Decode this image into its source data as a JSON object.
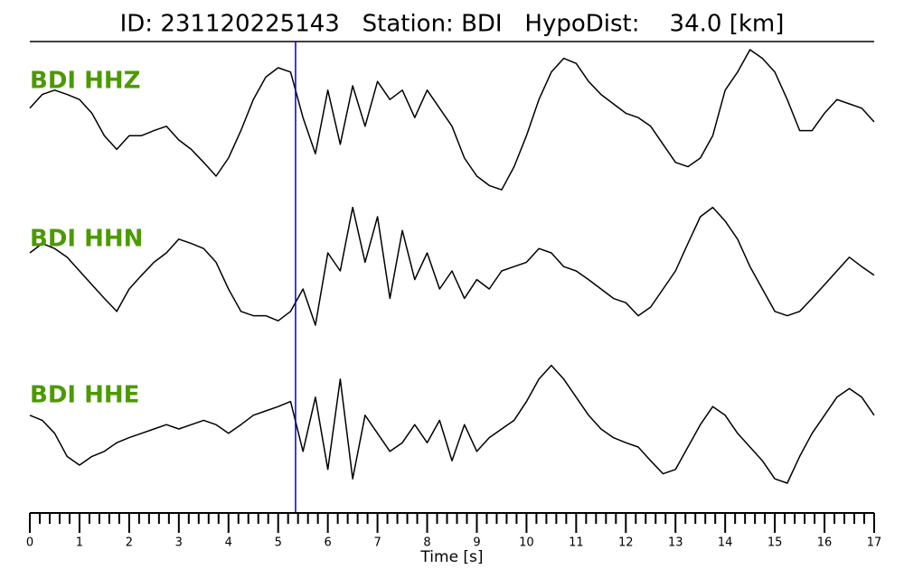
{
  "chart_data": {
    "type": "line",
    "title": "ID: 231120225143   Station: BDI   HypoDist:    34.0 [km]",
    "xlabel": "Time [s]",
    "xlim": [
      0,
      17
    ],
    "xticks": [
      0,
      1,
      2,
      3,
      4,
      5,
      6,
      7,
      8,
      9,
      10,
      11,
      12,
      13,
      14,
      15,
      16,
      17
    ],
    "xminorticks": [
      0.2,
      0.4,
      0.6,
      0.8,
      1.2,
      1.4,
      1.6,
      1.8,
      2.2,
      2.4,
      2.6,
      2.8,
      3.2,
      3.4,
      3.6,
      3.8,
      4.2,
      4.4,
      4.6,
      4.8,
      5.2,
      5.4,
      5.6,
      5.8,
      6.2,
      6.4,
      6.6,
      6.8,
      7.2,
      7.4,
      7.6,
      7.8,
      8.2,
      8.4,
      8.6,
      8.8,
      9.2,
      9.4,
      9.6,
      9.8,
      10.2,
      10.4,
      10.6,
      10.8,
      11.2,
      11.4,
      11.6,
      11.8,
      12.2,
      12.4,
      12.6,
      12.8,
      13.2,
      13.4,
      13.6,
      13.8,
      14.2,
      14.4,
      14.6,
      14.8,
      15.2,
      15.4,
      15.6,
      15.8,
      16.2,
      16.4,
      16.6,
      16.8
    ],
    "ylim": [
      -1.1,
      1.1
    ],
    "label_color": "#4c9a00",
    "pick": {
      "x": 5.35,
      "color": "#0000cc"
    },
    "x": [
      0,
      0.25,
      0.5,
      0.75,
      1,
      1.25,
      1.5,
      1.75,
      2,
      2.25,
      2.5,
      2.75,
      3,
      3.25,
      3.5,
      3.75,
      4,
      4.25,
      4.5,
      4.75,
      5,
      5.25,
      5.5,
      5.75,
      6,
      6.25,
      6.5,
      6.75,
      7,
      7.25,
      7.5,
      7.75,
      8,
      8.25,
      8.5,
      8.75,
      9,
      9.25,
      9.5,
      9.75,
      10,
      10.25,
      10.5,
      10.75,
      11,
      11.25,
      11.5,
      11.75,
      12,
      12.25,
      12.5,
      12.75,
      13,
      13.25,
      13.5,
      13.75,
      14,
      14.25,
      14.5,
      14.75,
      15,
      15.25,
      15.5,
      15.75,
      16,
      16.25,
      16.5,
      16.75,
      17
    ],
    "series": [
      {
        "name": "BDI HHZ",
        "color": "#000000",
        "values": [
          0.19,
          0.38,
          0.44,
          0.38,
          0.31,
          0.12,
          -0.19,
          -0.38,
          -0.19,
          -0.19,
          -0.12,
          -0.06,
          -0.25,
          -0.38,
          -0.56,
          -0.75,
          -0.5,
          -0.12,
          0.31,
          0.62,
          0.75,
          0.69,
          0.06,
          -0.44,
          0.44,
          -0.31,
          0.5,
          -0.06,
          0.56,
          0.31,
          0.44,
          0.06,
          0.44,
          0.19,
          -0.06,
          -0.5,
          -0.75,
          -0.88,
          -0.94,
          -0.62,
          -0.19,
          0.31,
          0.69,
          0.88,
          0.81,
          0.56,
          0.38,
          0.25,
          0.12,
          0.06,
          -0.06,
          -0.31,
          -0.56,
          -0.62,
          -0.5,
          -0.19,
          0.44,
          0.69,
          1.0,
          0.88,
          0.69,
          0.31,
          -0.12,
          -0.12,
          0.12,
          0.31,
          0.25,
          0.19,
          0
        ]
      },
      {
        "name": "BDI HHN",
        "color": "#000000",
        "values": [
          0.25,
          0.38,
          0.31,
          0.19,
          0,
          -0.19,
          -0.38,
          -0.56,
          -0.25,
          -0.06,
          0.12,
          0.25,
          0.44,
          0.38,
          0.31,
          0.12,
          -0.25,
          -0.56,
          -0.62,
          -0.62,
          -0.69,
          -0.56,
          -0.25,
          -0.75,
          0.25,
          0,
          0.88,
          0.12,
          0.75,
          -0.38,
          0.56,
          -0.12,
          0.25,
          -0.25,
          0,
          -0.38,
          -0.12,
          -0.25,
          0,
          0.06,
          0.12,
          0.31,
          0.25,
          0.06,
          0,
          -0.12,
          -0.25,
          -0.38,
          -0.44,
          -0.62,
          -0.5,
          -0.25,
          0,
          0.38,
          0.75,
          0.88,
          0.69,
          0.44,
          0.06,
          -0.25,
          -0.56,
          -0.62,
          -0.56,
          -0.38,
          -0.19,
          0,
          0.19,
          0.06,
          -0.06
        ]
      },
      {
        "name": "BDI HHE",
        "color": "#000000",
        "values": [
          0.19,
          0.12,
          -0.06,
          -0.38,
          -0.5,
          -0.38,
          -0.31,
          -0.19,
          -0.12,
          -0.06,
          0,
          0.06,
          0,
          0.06,
          0.12,
          0.06,
          -0.06,
          0.06,
          0.19,
          0.25,
          0.31,
          0.38,
          -0.31,
          0.44,
          -0.56,
          0.69,
          -0.69,
          0.19,
          -0.06,
          -0.31,
          -0.19,
          0.06,
          -0.19,
          0.12,
          -0.44,
          0.06,
          -0.31,
          -0.12,
          0,
          0.12,
          0.38,
          0.69,
          0.88,
          0.69,
          0.44,
          0.19,
          0,
          -0.12,
          -0.19,
          -0.25,
          -0.44,
          -0.62,
          -0.56,
          -0.25,
          0.06,
          0.31,
          0.19,
          -0.06,
          -0.25,
          -0.44,
          -0.69,
          -0.75,
          -0.38,
          -0.06,
          0.19,
          0.44,
          0.56,
          0.44,
          0.19
        ]
      }
    ]
  }
}
